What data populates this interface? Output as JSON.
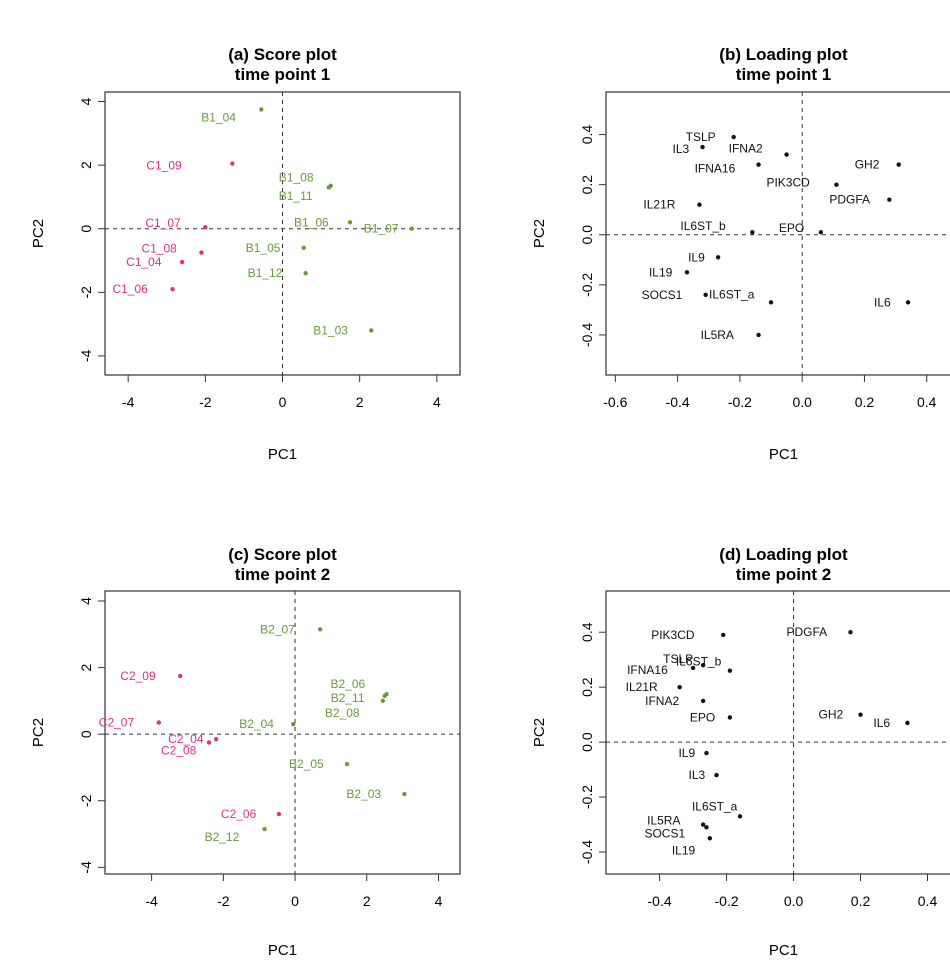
{
  "colors": {
    "C": "#d6338a",
    "B": "#6b9a3b",
    "var": "#111111"
  },
  "chart_data": [
    {
      "type": "scatter",
      "title": [
        "(a) Score plot",
        "time point 1"
      ],
      "xlabel": "PC1",
      "ylabel": "PC2",
      "xlim": [
        -4.6,
        4.6
      ],
      "ylim": [
        -4.6,
        4.3
      ],
      "xticks": [
        -4,
        -2,
        0,
        2,
        4
      ],
      "yticks": [
        -4,
        -2,
        0,
        2,
        4
      ],
      "points": [
        {
          "label": "B1_04",
          "x": -0.55,
          "y": 3.75,
          "group": "B"
        },
        {
          "label": "C1_09",
          "x": -1.3,
          "y": 2.05,
          "group": "C"
        },
        {
          "label": "B1_08",
          "x": 1.2,
          "y": 1.3,
          "group": "B"
        },
        {
          "label": "B1_11",
          "x": 1.25,
          "y": 1.35,
          "group": "B"
        },
        {
          "label": "C1_07",
          "x": -2.0,
          "y": 0.05,
          "group": "C"
        },
        {
          "label": "B1_06",
          "x": 1.75,
          "y": 0.2,
          "group": "B"
        },
        {
          "label": "B1_07",
          "x": 3.35,
          "y": 0.0,
          "group": "B"
        },
        {
          "label": "C1_08",
          "x": -2.1,
          "y": -0.75,
          "group": "C"
        },
        {
          "label": "B1_05",
          "x": 0.55,
          "y": -0.6,
          "group": "B"
        },
        {
          "label": "C1_04",
          "x": -2.6,
          "y": -1.05,
          "group": "C"
        },
        {
          "label": "B1_12",
          "x": 0.6,
          "y": -1.4,
          "group": "B"
        },
        {
          "label": "C1_06",
          "x": -2.85,
          "y": -1.9,
          "group": "C"
        },
        {
          "label": "B1_03",
          "x": 2.3,
          "y": -3.2,
          "group": "B"
        }
      ]
    },
    {
      "type": "scatter",
      "title": [
        "(b) Loading plot",
        "time point 1"
      ],
      "xlabel": "PC1",
      "ylabel": "PC2",
      "xlim": [
        -0.63,
        0.51
      ],
      "ylim": [
        -0.56,
        0.57
      ],
      "xticks": [
        -0.6,
        -0.4,
        -0.2,
        0.0,
        0.2,
        0.4
      ],
      "yticks": [
        -0.4,
        -0.2,
        0.0,
        0.2,
        0.4
      ],
      "points": [
        {
          "label": "TSLP",
          "x": -0.22,
          "y": 0.39,
          "group": "var"
        },
        {
          "label": "IL3",
          "x": -0.32,
          "y": 0.35,
          "group": "var"
        },
        {
          "label": "IFNA2",
          "x": -0.05,
          "y": 0.32,
          "group": "var"
        },
        {
          "label": "IFNA16",
          "x": -0.14,
          "y": 0.28,
          "group": "var"
        },
        {
          "label": "GH2",
          "x": 0.31,
          "y": 0.28,
          "group": "var"
        },
        {
          "label": "PIK3CD",
          "x": 0.11,
          "y": 0.2,
          "group": "var"
        },
        {
          "label": "PDGFA",
          "x": 0.28,
          "y": 0.14,
          "group": "var"
        },
        {
          "label": "IL21R",
          "x": -0.33,
          "y": 0.12,
          "group": "var"
        },
        {
          "label": "IL6ST_b",
          "x": -0.16,
          "y": 0.01,
          "group": "var"
        },
        {
          "label": "EPO",
          "x": 0.06,
          "y": 0.01,
          "group": "var"
        },
        {
          "label": "IL9",
          "x": -0.27,
          "y": -0.09,
          "group": "var"
        },
        {
          "label": "IL19",
          "x": -0.37,
          "y": -0.15,
          "group": "var"
        },
        {
          "label": "SOCS1",
          "x": -0.31,
          "y": -0.24,
          "group": "var"
        },
        {
          "label": "IL6ST_a",
          "x": -0.1,
          "y": -0.27,
          "group": "var"
        },
        {
          "label": "IL6",
          "x": 0.34,
          "y": -0.27,
          "group": "var"
        },
        {
          "label": "IL5RA",
          "x": -0.14,
          "y": -0.4,
          "group": "var"
        }
      ]
    },
    {
      "type": "scatter",
      "title": [
        "(c) Score plot",
        "time point 2"
      ],
      "xlabel": "PC1",
      "ylabel": "PC2",
      "xlim": [
        -5.3,
        4.6
      ],
      "ylim": [
        -4.2,
        4.3
      ],
      "xticks": [
        -4,
        -2,
        0,
        2,
        4
      ],
      "yticks": [
        -4,
        -2,
        0,
        2,
        4
      ],
      "points": [
        {
          "label": "B2_07",
          "x": 0.7,
          "y": 3.15,
          "group": "B"
        },
        {
          "label": "C2_09",
          "x": -3.2,
          "y": 1.75,
          "group": "C"
        },
        {
          "label": "B2_06",
          "x": 2.55,
          "y": 1.2,
          "group": "B"
        },
        {
          "label": "B2_11",
          "x": 2.5,
          "y": 1.15,
          "group": "B"
        },
        {
          "label": "B2_08",
          "x": 2.45,
          "y": 1.0,
          "group": "B"
        },
        {
          "label": "C2_07",
          "x": -3.8,
          "y": 0.35,
          "group": "C"
        },
        {
          "label": "C2_04",
          "x": -2.2,
          "y": -0.15,
          "group": "C"
        },
        {
          "label": "B2_04",
          "x": -0.05,
          "y": 0.3,
          "group": "B"
        },
        {
          "label": "C2_08",
          "x": -2.4,
          "y": -0.25,
          "group": "C"
        },
        {
          "label": "B2_05",
          "x": 1.45,
          "y": -0.9,
          "group": "B"
        },
        {
          "label": "B2_03",
          "x": 3.05,
          "y": -1.8,
          "group": "B"
        },
        {
          "label": "C2_06",
          "x": -0.45,
          "y": -2.4,
          "group": "C"
        },
        {
          "label": "B2_12",
          "x": -0.85,
          "y": -2.85,
          "group": "B"
        }
      ]
    },
    {
      "type": "scatter",
      "title": [
        "(d) Loading plot",
        "time point 2"
      ],
      "xlabel": "PC1",
      "ylabel": "PC2",
      "xlim": [
        -0.56,
        0.5
      ],
      "ylim": [
        -0.48,
        0.55
      ],
      "xticks": [
        -0.4,
        -0.2,
        0.0,
        0.2,
        0.4
      ],
      "yticks": [
        -0.4,
        -0.2,
        0.0,
        0.2,
        0.4
      ],
      "points": [
        {
          "label": "PIK3CD",
          "x": -0.21,
          "y": 0.39,
          "group": "var"
        },
        {
          "label": "PDGFA",
          "x": 0.17,
          "y": 0.4,
          "group": "var"
        },
        {
          "label": "TSLP",
          "x": -0.27,
          "y": 0.28,
          "group": "var"
        },
        {
          "label": "IL6ST_b",
          "x": -0.19,
          "y": 0.26,
          "group": "var"
        },
        {
          "label": "IFNA16",
          "x": -0.3,
          "y": 0.27,
          "group": "var"
        },
        {
          "label": "IL21R",
          "x": -0.34,
          "y": 0.2,
          "group": "var"
        },
        {
          "label": "IFNA2",
          "x": -0.27,
          "y": 0.15,
          "group": "var"
        },
        {
          "label": "EPO",
          "x": -0.19,
          "y": 0.09,
          "group": "var"
        },
        {
          "label": "GH2",
          "x": 0.2,
          "y": 0.1,
          "group": "var"
        },
        {
          "label": "IL6",
          "x": 0.34,
          "y": 0.07,
          "group": "var"
        },
        {
          "label": "IL9",
          "x": -0.26,
          "y": -0.04,
          "group": "var"
        },
        {
          "label": "IL3",
          "x": -0.23,
          "y": -0.12,
          "group": "var"
        },
        {
          "label": "IL6ST_a",
          "x": -0.16,
          "y": -0.27,
          "group": "var"
        },
        {
          "label": "IL5RA",
          "x": -0.27,
          "y": -0.3,
          "group": "var"
        },
        {
          "label": "SOCS1",
          "x": -0.26,
          "y": -0.31,
          "group": "var"
        },
        {
          "label": "IL19",
          "x": -0.25,
          "y": -0.35,
          "group": "var"
        }
      ]
    }
  ]
}
